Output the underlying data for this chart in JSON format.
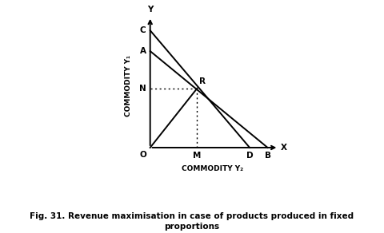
{
  "title": "Fig. 31. Revenue maximisation in case of products produced in fixed\nproportions",
  "xlabel": "COMMODITY Y₂",
  "ylabel": "COMMODITY Y₁",
  "C": [
    0,
    8.5
  ],
  "A": [
    0,
    7.0
  ],
  "B": [
    8.5,
    0
  ],
  "D": [
    7.2,
    0
  ],
  "R": [
    3.4,
    4.3
  ],
  "N": [
    0,
    4.3
  ],
  "M": [
    3.4,
    0
  ],
  "O": [
    0,
    0
  ],
  "line_color": "black",
  "bg_color": "white",
  "font_size": 7.5,
  "title_fontsize": 7.5,
  "lw_main": 1.4,
  "lw_dot": 1.0
}
